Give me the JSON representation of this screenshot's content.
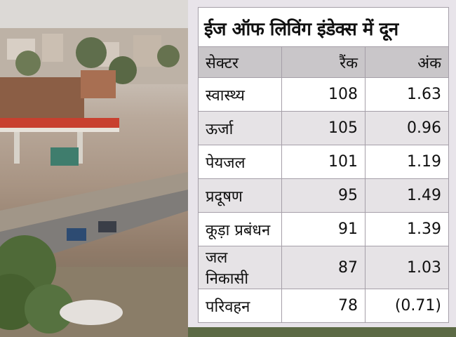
{
  "table": {
    "title": "ईज ऑफ लिविंग इंडेक्स में दून",
    "headers": [
      "सेक्टर",
      "रैंक",
      "अंक"
    ],
    "rows": [
      {
        "sector": "स्वास्थ्य",
        "rank": "108",
        "score": "1.63"
      },
      {
        "sector": "ऊर्जा",
        "rank": "105",
        "score": "0.96"
      },
      {
        "sector": "पेयजल",
        "rank": "101",
        "score": "1.19"
      },
      {
        "sector": "प्रदूषण",
        "rank": "95",
        "score": "1.49"
      },
      {
        "sector": "कूड़ा प्रबंधन",
        "rank": "91",
        "score": "1.39"
      },
      {
        "sector": "जल निकासी",
        "rank": "87",
        "score": "1.03"
      },
      {
        "sector": "परिवहन",
        "rank": "78",
        "score": "(0.71)"
      }
    ]
  },
  "colors": {
    "panel_bg": "#e8e4ea",
    "header_bg": "#c9c6c9",
    "row_alt_bg": "#e6e3e6",
    "border": "#a59fa8"
  }
}
